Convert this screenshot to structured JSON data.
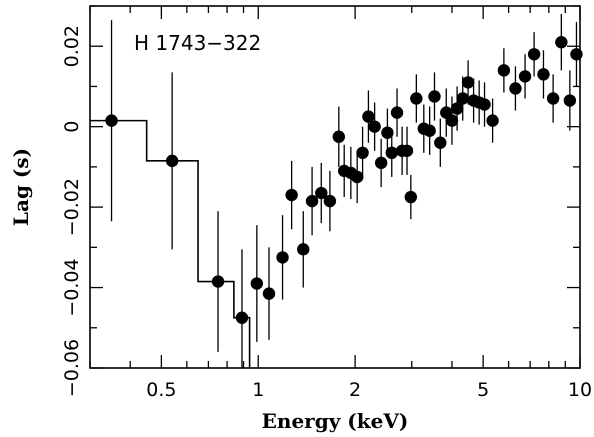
{
  "chart_data": {
    "type": "scatter",
    "title": "",
    "annotation": "H 1743−322",
    "xlabel": "Energy (keV)",
    "ylabel": "Lag (s)",
    "xscale": "log",
    "xlim": [
      0.3,
      10
    ],
    "ylim": [
      -0.06,
      0.03
    ],
    "xticks_major": [
      0.5,
      1,
      2,
      5,
      10
    ],
    "xtick_labels": [
      "0.5",
      "1",
      "2",
      "5",
      "10"
    ],
    "xticks_minor": [
      0.3,
      0.4,
      0.6,
      0.7,
      0.8,
      0.9,
      3,
      4,
      6,
      7,
      8,
      9
    ],
    "yticks_major": [
      -0.06,
      -0.04,
      -0.02,
      0,
      0.02
    ],
    "ytick_labels": [
      "−0.06",
      "−0.04",
      "−0.02",
      "0",
      "0.02"
    ],
    "yticks_minor": [
      -0.05,
      -0.03,
      -0.01,
      0.01,
      0.03
    ],
    "grid": false,
    "series": [
      {
        "points": [
          {
            "x": 0.35,
            "y": 0.0015,
            "err": 0.025
          },
          {
            "x": 0.54,
            "y": -0.0085,
            "err": 0.022
          },
          {
            "x": 0.75,
            "y": -0.0385,
            "err": 0.0175
          },
          {
            "x": 0.89,
            "y": -0.0475,
            "err": 0.017
          },
          {
            "x": 0.99,
            "y": -0.039,
            "err": 0.0145
          },
          {
            "x": 1.08,
            "y": -0.0415,
            "err": 0.0115
          },
          {
            "x": 1.19,
            "y": -0.0325,
            "err": 0.0105
          },
          {
            "x": 1.27,
            "y": -0.017,
            "err": 0.0085
          },
          {
            "x": 1.38,
            "y": -0.0305,
            "err": 0.0095
          },
          {
            "x": 1.47,
            "y": -0.0185,
            "err": 0.0085
          },
          {
            "x": 1.57,
            "y": -0.0165,
            "err": 0.0075
          },
          {
            "x": 1.67,
            "y": -0.0185,
            "err": 0.0075
          },
          {
            "x": 1.78,
            "y": -0.0025,
            "err": 0.0075
          },
          {
            "x": 1.85,
            "y": -0.011,
            "err": 0.0065
          },
          {
            "x": 1.94,
            "y": -0.0115,
            "err": 0.0065
          },
          {
            "x": 2.03,
            "y": -0.0125,
            "err": 0.0065
          },
          {
            "x": 2.11,
            "y": -0.0065,
            "err": 0.0065
          },
          {
            "x": 2.2,
            "y": 0.0025,
            "err": 0.0065
          },
          {
            "x": 2.3,
            "y": 0.0,
            "err": 0.006
          },
          {
            "x": 2.41,
            "y": -0.009,
            "err": 0.006
          },
          {
            "x": 2.52,
            "y": -0.0015,
            "err": 0.006
          },
          {
            "x": 2.6,
            "y": -0.0065,
            "err": 0.006
          },
          {
            "x": 2.7,
            "y": 0.0035,
            "err": 0.006
          },
          {
            "x": 2.8,
            "y": -0.006,
            "err": 0.006
          },
          {
            "x": 2.9,
            "y": -0.006,
            "err": 0.006
          },
          {
            "x": 2.98,
            "y": -0.0175,
            "err": 0.0055
          },
          {
            "x": 3.1,
            "y": 0.007,
            "err": 0.006
          },
          {
            "x": 3.27,
            "y": -0.0005,
            "err": 0.006
          },
          {
            "x": 3.41,
            "y": -0.001,
            "err": 0.006
          },
          {
            "x": 3.53,
            "y": 0.0075,
            "err": 0.006
          },
          {
            "x": 3.68,
            "y": -0.004,
            "err": 0.006
          },
          {
            "x": 3.84,
            "y": 0.0035,
            "err": 0.006
          },
          {
            "x": 4.0,
            "y": 0.0015,
            "err": 0.006
          },
          {
            "x": 4.15,
            "y": 0.0045,
            "err": 0.0055
          },
          {
            "x": 4.32,
            "y": 0.007,
            "err": 0.0055
          },
          {
            "x": 4.49,
            "y": 0.011,
            "err": 0.0055
          },
          {
            "x": 4.67,
            "y": 0.0065,
            "err": 0.0055
          },
          {
            "x": 4.86,
            "y": 0.006,
            "err": 0.0055
          },
          {
            "x": 5.05,
            "y": 0.0055,
            "err": 0.0055
          },
          {
            "x": 5.35,
            "y": 0.0015,
            "err": 0.0055
          },
          {
            "x": 5.8,
            "y": 0.014,
            "err": 0.0055
          },
          {
            "x": 6.3,
            "y": 0.0095,
            "err": 0.0055
          },
          {
            "x": 6.75,
            "y": 0.0125,
            "err": 0.0055
          },
          {
            "x": 7.2,
            "y": 0.018,
            "err": 0.0055
          },
          {
            "x": 7.7,
            "y": 0.013,
            "err": 0.006
          },
          {
            "x": 8.25,
            "y": 0.007,
            "err": 0.006
          },
          {
            "x": 8.75,
            "y": 0.021,
            "err": 0.007
          },
          {
            "x": 9.3,
            "y": 0.0065,
            "err": 0.0075
          },
          {
            "x": 9.75,
            "y": 0.018,
            "err": 0.008
          }
        ]
      }
    ],
    "model_steps": [
      {
        "x0": 0.3,
        "x1": 0.45,
        "y": 0.0015
      },
      {
        "x0": 0.45,
        "x1": 0.65,
        "y": -0.0085
      },
      {
        "x0": 0.65,
        "x1": 0.84,
        "y": -0.0385
      },
      {
        "x0": 0.84,
        "x1": 0.94,
        "y": -0.0475
      }
    ]
  }
}
